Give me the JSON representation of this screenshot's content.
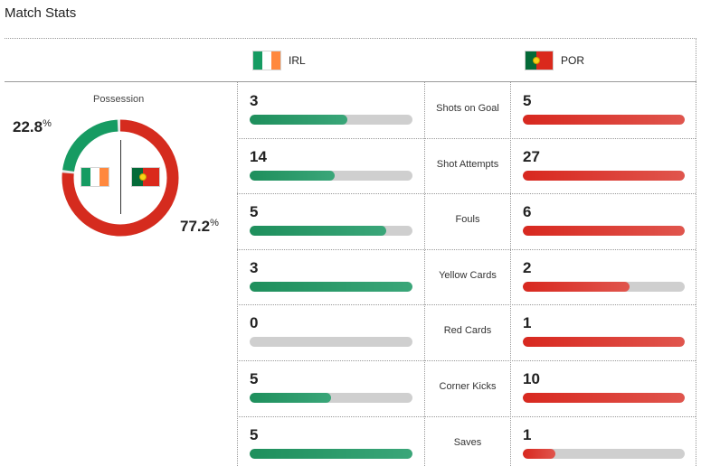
{
  "header": {
    "title": "Match Stats"
  },
  "teams": {
    "home": {
      "code": "IRL",
      "color": "#169b62",
      "flag_colors": [
        "#169b62",
        "#ffffff",
        "#ff883e"
      ]
    },
    "away": {
      "code": "POR",
      "color": "#d52b1e",
      "flag_colors": [
        "#046a38",
        "#da291c"
      ]
    }
  },
  "possession": {
    "label": "Possession",
    "home_value": "22.8",
    "away_value": "77.2",
    "unit": "%",
    "home_fraction": 0.228,
    "away_fraction": 0.772
  },
  "stats": [
    {
      "label": "Shots on Goal",
      "home": "3",
      "away": "5",
      "home_fill": 0.6,
      "away_fill": 1.0
    },
    {
      "label": "Shot Attempts",
      "home": "14",
      "away": "27",
      "home_fill": 0.52,
      "away_fill": 1.0
    },
    {
      "label": "Fouls",
      "home": "5",
      "away": "6",
      "home_fill": 0.84,
      "away_fill": 1.0
    },
    {
      "label": "Yellow Cards",
      "home": "3",
      "away": "2",
      "home_fill": 1.0,
      "away_fill": 0.66
    },
    {
      "label": "Red Cards",
      "home": "0",
      "away": "1",
      "home_fill": 0.0,
      "away_fill": 1.0
    },
    {
      "label": "Corner Kicks",
      "home": "5",
      "away": "10",
      "home_fill": 0.5,
      "away_fill": 1.0
    },
    {
      "label": "Saves",
      "home": "5",
      "away": "1",
      "home_fill": 1.0,
      "away_fill": 0.2
    }
  ]
}
